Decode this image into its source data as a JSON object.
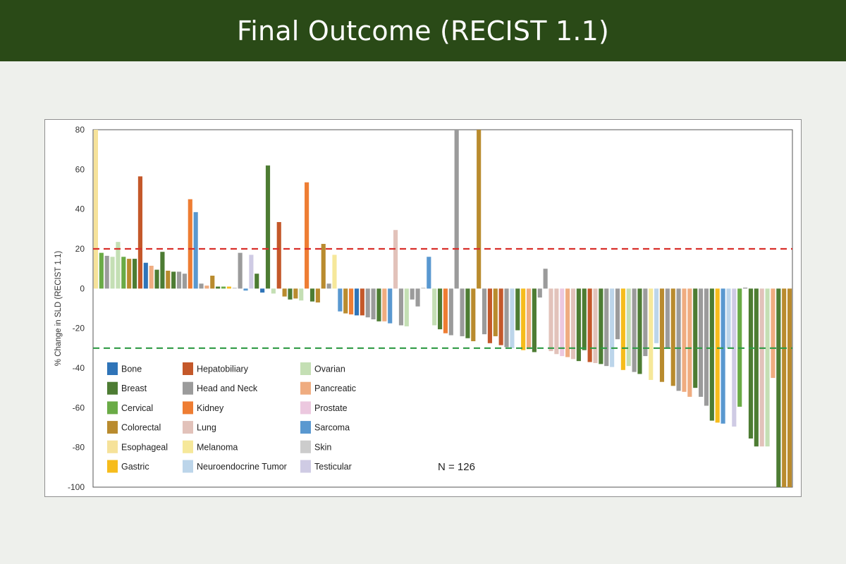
{
  "header": {
    "title": "Final Outcome (RECIST 1.1)"
  },
  "colors": {
    "header_bg": "#2a4a17",
    "threshold_progression": "#d9302b",
    "threshold_response": "#2e9a44"
  },
  "chart_data": {
    "type": "bar",
    "title": "",
    "xlabel": "",
    "ylabel": "% Change in SLD (RECIST 1.1)",
    "ylim": [
      -100,
      80
    ],
    "yticks": [
      80,
      60,
      40,
      20,
      0,
      -20,
      -40,
      -60,
      -80,
      -100
    ],
    "reference_lines": [
      {
        "value": 20,
        "color": "#d9302b",
        "style": "dashed"
      },
      {
        "value": -30,
        "color": "#2e9a44",
        "style": "dashed"
      }
    ],
    "annotation": "N = 126",
    "legend_placement": "bottom-left",
    "legend": [
      {
        "name": "Bone",
        "color": "#2f74b8"
      },
      {
        "name": "Breast",
        "color": "#4d7c33"
      },
      {
        "name": "Cervical",
        "color": "#6aab46"
      },
      {
        "name": "Colorectal",
        "color": "#b98b2e"
      },
      {
        "name": "Esophageal",
        "color": "#f6e29a"
      },
      {
        "name": "Gastric",
        "color": "#f6bc1c"
      },
      {
        "name": "Hepatobiliary",
        "color": "#c4582a"
      },
      {
        "name": "Head and Neck",
        "color": "#9b9b9b"
      },
      {
        "name": "Kidney",
        "color": "#ee7d33"
      },
      {
        "name": "Lung",
        "color": "#e2c2ba"
      },
      {
        "name": "Melanoma",
        "color": "#f6e89a"
      },
      {
        "name": "Neuroendocrine Tumor",
        "color": "#bcd5ea"
      },
      {
        "name": "Ovarian",
        "color": "#c4dfb4"
      },
      {
        "name": "Pancreatic",
        "color": "#efac80"
      },
      {
        "name": "Prostate",
        "color": "#ecc8df"
      },
      {
        "name": "Sarcoma",
        "color": "#5998d0"
      },
      {
        "name": "Skin",
        "color": "#cccccc"
      },
      {
        "name": "Testicular",
        "color": "#cfcbe4"
      }
    ],
    "bars": [
      {
        "t": "Esophageal",
        "v": 80
      },
      {
        "t": "Cervical",
        "v": 18
      },
      {
        "t": "Head and Neck",
        "v": 16.5
      },
      {
        "t": "Ovarian",
        "v": 16
      },
      {
        "t": "Ovarian",
        "v": 23.5
      },
      {
        "t": "Cervical",
        "v": 16
      },
      {
        "t": "Colorectal",
        "v": 15
      },
      {
        "t": "Breast",
        "v": 15
      },
      {
        "t": "Hepatobiliary",
        "v": 56.5
      },
      {
        "t": "Bone",
        "v": 13
      },
      {
        "t": "Pancreatic",
        "v": 11.5
      },
      {
        "t": "Breast",
        "v": 9.5
      },
      {
        "t": "Breast",
        "v": 18.5
      },
      {
        "t": "Colorectal",
        "v": 9
      },
      {
        "t": "Breast",
        "v": 8.5
      },
      {
        "t": "Head and Neck",
        "v": 8.5
      },
      {
        "t": "Head and Neck",
        "v": 7.5
      },
      {
        "t": "Kidney",
        "v": 45
      },
      {
        "t": "Sarcoma",
        "v": 38.5
      },
      {
        "t": "Head and Neck",
        "v": 2.5
      },
      {
        "t": "Pancreatic",
        "v": 1.5
      },
      {
        "t": "Colorectal",
        "v": 6.5
      },
      {
        "t": "Breast",
        "v": 1
      },
      {
        "t": "Cervical",
        "v": 1
      },
      {
        "t": "Gastric",
        "v": 1
      },
      {
        "t": "Skin",
        "v": 0.5
      },
      {
        "t": "Head and Neck",
        "v": 18
      },
      {
        "t": "Sarcoma",
        "v": -1
      },
      {
        "t": "Testicular",
        "v": 17
      },
      {
        "t": "Breast",
        "v": 7.5
      },
      {
        "t": "Bone",
        "v": -2
      },
      {
        "t": "Breast",
        "v": 62
      },
      {
        "t": "Ovarian",
        "v": -2.5
      },
      {
        "t": "Hepatobiliary",
        "v": 33.5
      },
      {
        "t": "Colorectal",
        "v": -4
      },
      {
        "t": "Breast",
        "v": -5.5
      },
      {
        "t": "Colorectal",
        "v": -5
      },
      {
        "t": "Ovarian",
        "v": -6
      },
      {
        "t": "Kidney",
        "v": 53.5
      },
      {
        "t": "Breast",
        "v": -6.5
      },
      {
        "t": "Colorectal",
        "v": -7
      },
      {
        "t": "Colorectal",
        "v": 22.5
      },
      {
        "t": "Head and Neck",
        "v": 2.5
      },
      {
        "t": "Melanoma",
        "v": 17
      },
      {
        "t": "Sarcoma",
        "v": -11.5
      },
      {
        "t": "Colorectal",
        "v": -12.5
      },
      {
        "t": "Kidney",
        "v": -13
      },
      {
        "t": "Bone",
        "v": -13.5
      },
      {
        "t": "Hepatobiliary",
        "v": -13.5
      },
      {
        "t": "Head and Neck",
        "v": -14.5
      },
      {
        "t": "Head and Neck",
        "v": -15.5
      },
      {
        "t": "Breast",
        "v": -16.5
      },
      {
        "t": "Pancreatic",
        "v": -16.5
      },
      {
        "t": "Sarcoma",
        "v": -17.5
      },
      {
        "t": "Lung",
        "v": 29.5
      },
      {
        "t": "Head and Neck",
        "v": -18.5
      },
      {
        "t": "Ovarian",
        "v": -19
      },
      {
        "t": "Head and Neck",
        "v": -5.5
      },
      {
        "t": "Head and Neck",
        "v": -9
      },
      {
        "t": "Skin",
        "v": 0.5
      },
      {
        "t": "Sarcoma",
        "v": 16
      },
      {
        "t": "Ovarian",
        "v": -18.5
      },
      {
        "t": "Breast",
        "v": -20.5
      },
      {
        "t": "Kidney",
        "v": -22.5
      },
      {
        "t": "Head and Neck",
        "v": -23.5
      },
      {
        "t": "Head and Neck",
        "v": 80
      },
      {
        "t": "Head and Neck",
        "v": -24
      },
      {
        "t": "Breast",
        "v": -25
      },
      {
        "t": "Colorectal",
        "v": -26.5
      },
      {
        "t": "Colorectal",
        "v": 80
      },
      {
        "t": "Head and Neck",
        "v": -23
      },
      {
        "t": "Hepatobiliary",
        "v": -27.5
      },
      {
        "t": "Colorectal",
        "v": -24
      },
      {
        "t": "Hepatobiliary",
        "v": -28.5
      },
      {
        "t": "Head and Neck",
        "v": -29.5
      },
      {
        "t": "Neuroendocrine Tumor",
        "v": -30
      },
      {
        "t": "Breast",
        "v": -21
      },
      {
        "t": "Gastric",
        "v": -31
      },
      {
        "t": "Pancreatic",
        "v": -30.5
      },
      {
        "t": "Breast",
        "v": -32
      },
      {
        "t": "Head and Neck",
        "v": -4.5
      },
      {
        "t": "Head and Neck",
        "v": 10
      },
      {
        "t": "Lung",
        "v": -31.5
      },
      {
        "t": "Lung",
        "v": -33
      },
      {
        "t": "Prostate",
        "v": -34
      },
      {
        "t": "Pancreatic",
        "v": -34.5
      },
      {
        "t": "Lung",
        "v": -35.5
      },
      {
        "t": "Breast",
        "v": -36.5
      },
      {
        "t": "Breast",
        "v": -31
      },
      {
        "t": "Hepatobiliary",
        "v": -37
      },
      {
        "t": "Lung",
        "v": -37.5
      },
      {
        "t": "Breast",
        "v": -38
      },
      {
        "t": "Head and Neck",
        "v": -39
      },
      {
        "t": "Neuroendocrine Tumor",
        "v": -39.5
      },
      {
        "t": "Head and Neck",
        "v": -25.5
      },
      {
        "t": "Gastric",
        "v": -41
      },
      {
        "t": "Ovarian",
        "v": -39
      },
      {
        "t": "Head and Neck",
        "v": -42
      },
      {
        "t": "Breast",
        "v": -43
      },
      {
        "t": "Head and Neck",
        "v": -34
      },
      {
        "t": "Melanoma",
        "v": -46
      },
      {
        "t": "Neuroendocrine Tumor",
        "v": -27.5
      },
      {
        "t": "Colorectal",
        "v": -47
      },
      {
        "t": "Head and Neck",
        "v": -30
      },
      {
        "t": "Colorectal",
        "v": -49
      },
      {
        "t": "Head and Neck",
        "v": -51.5
      },
      {
        "t": "Pancreatic",
        "v": -52
      },
      {
        "t": "Pancreatic",
        "v": -54.5
      },
      {
        "t": "Breast",
        "v": -50
      },
      {
        "t": "Head and Neck",
        "v": -54.5
      },
      {
        "t": "Head and Neck",
        "v": -59
      },
      {
        "t": "Breast",
        "v": -66.5
      },
      {
        "t": "Gastric",
        "v": -67.5
      },
      {
        "t": "Sarcoma",
        "v": -68
      },
      {
        "t": "Neuroendocrine Tumor",
        "v": -30
      },
      {
        "t": "Testicular",
        "v": -69.5
      },
      {
        "t": "Cervical",
        "v": -59.5
      },
      {
        "t": "Head and Neck",
        "v": 0.5
      },
      {
        "t": "Breast",
        "v": -75.5
      },
      {
        "t": "Breast",
        "v": -79.5
      },
      {
        "t": "Lung",
        "v": -79.5
      },
      {
        "t": "Ovarian",
        "v": -79.5
      },
      {
        "t": "Pancreatic",
        "v": -45
      },
      {
        "t": "Breast",
        "v": -100
      },
      {
        "t": "Colorectal",
        "v": -100
      },
      {
        "t": "Colorectal",
        "v": -100
      }
    ]
  }
}
